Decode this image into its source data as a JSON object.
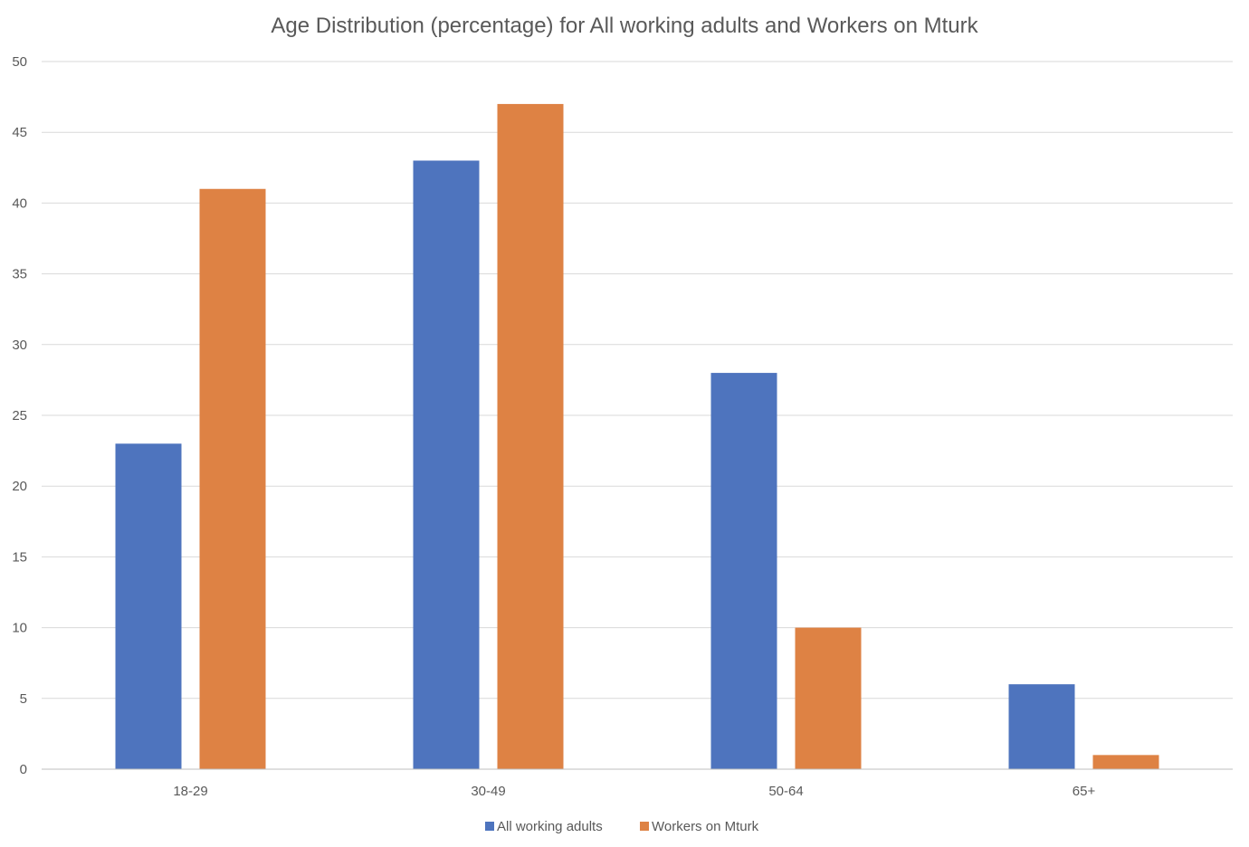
{
  "chart_data": {
    "type": "bar",
    "title": "Age Distribution (percentage) for All working adults and Workers on Mturk",
    "xlabel": "",
    "ylabel": "",
    "categories": [
      "18-29",
      "30-49",
      "50-64",
      "65+"
    ],
    "series": [
      {
        "name": "All working adults",
        "values": [
          23,
          43,
          28,
          6
        ],
        "color": "#4E74BE"
      },
      {
        "name": "Workers on Mturk",
        "values": [
          41,
          47,
          10,
          1
        ],
        "color": "#DE8244"
      }
    ],
    "ylim": [
      0,
      50
    ],
    "yticks": [
      0,
      5,
      10,
      15,
      20,
      25,
      30,
      35,
      40,
      45,
      50
    ],
    "grid": true,
    "legend_position": "bottom",
    "colors": {
      "gridline": "#D9D9D9",
      "axis": "#BFBFBF",
      "text": "#595959"
    }
  }
}
